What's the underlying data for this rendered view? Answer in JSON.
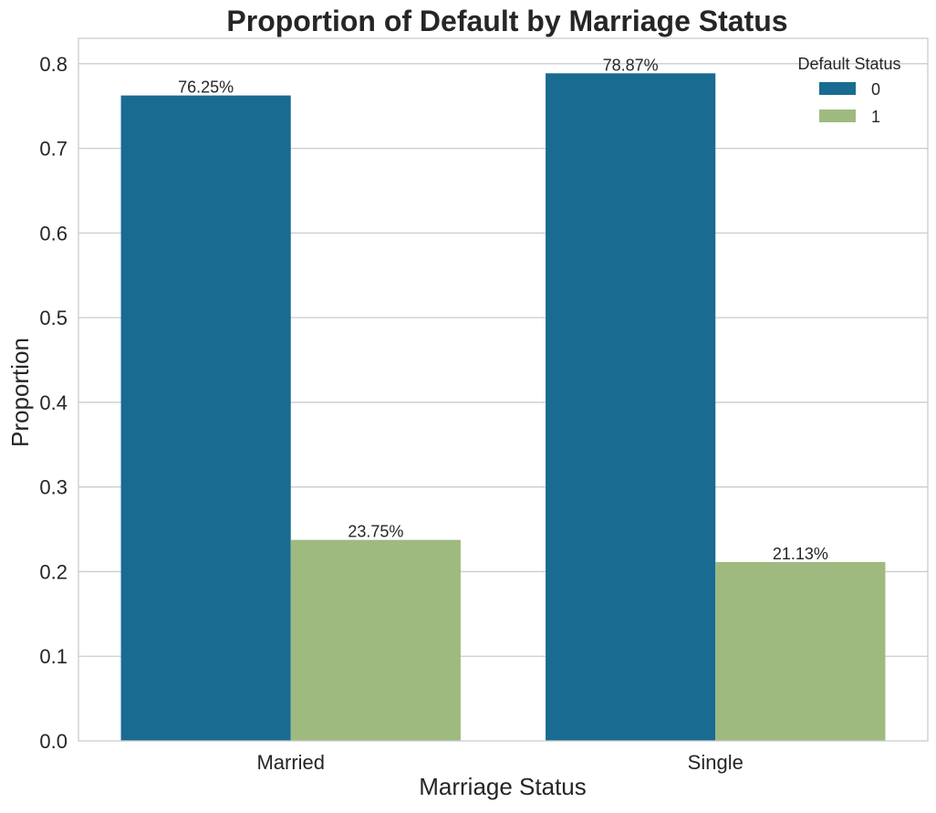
{
  "chart_data": {
    "type": "bar",
    "title": "Proportion of Default by Marriage Status",
    "xlabel": "Marriage Status",
    "ylabel": "Proportion",
    "categories": [
      "Married",
      "Single"
    ],
    "series": [
      {
        "name": "0",
        "color": "#1a6b91",
        "values": [
          0.7625,
          0.7887
        ],
        "labels": [
          "76.25%",
          "78.87%"
        ]
      },
      {
        "name": "1",
        "color": "#9fba7f",
        "values": [
          0.2375,
          0.2113
        ],
        "labels": [
          "23.75%",
          "21.13%"
        ]
      }
    ],
    "ylim": [
      0,
      0.83
    ],
    "yticks": [
      0.0,
      0.1,
      0.2,
      0.3,
      0.4,
      0.5,
      0.6,
      0.7,
      0.8
    ],
    "ytick_labels": [
      "0.0",
      "0.1",
      "0.2",
      "0.3",
      "0.4",
      "0.5",
      "0.6",
      "0.7",
      "0.8"
    ],
    "grid": true,
    "legend": {
      "title": "Default Status",
      "placement": "top-right"
    }
  }
}
